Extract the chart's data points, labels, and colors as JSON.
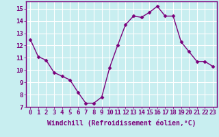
{
  "x": [
    0,
    1,
    2,
    3,
    4,
    5,
    6,
    7,
    8,
    9,
    10,
    11,
    12,
    13,
    14,
    15,
    16,
    17,
    18,
    19,
    20,
    21,
    22,
    23
  ],
  "y": [
    12.5,
    11.1,
    10.8,
    9.8,
    9.5,
    9.2,
    8.2,
    7.3,
    7.3,
    7.8,
    10.2,
    12.0,
    13.7,
    14.4,
    14.3,
    14.7,
    15.2,
    14.4,
    14.4,
    12.3,
    11.5,
    10.7,
    10.7,
    10.3
  ],
  "line_color": "#7B007B",
  "marker": "D",
  "marker_size": 2.5,
  "background_color": "#c8eef0",
  "grid_color": "#ffffff",
  "xlabel": "Windchill (Refroidissement éolien,°C)",
  "ylim": [
    7,
    15.6
  ],
  "yticks": [
    7,
    8,
    9,
    10,
    11,
    12,
    13,
    14,
    15
  ],
  "xtick_labels": [
    "0",
    "1",
    "2",
    "3",
    "4",
    "5",
    "6",
    "7",
    "8",
    "9",
    "10",
    "11",
    "12",
    "13",
    "14",
    "15",
    "16",
    "17",
    "18",
    "19",
    "20",
    "21",
    "22",
    "23"
  ],
  "xlabel_fontsize": 7,
  "tick_fontsize": 6.5,
  "linewidth": 1.0
}
